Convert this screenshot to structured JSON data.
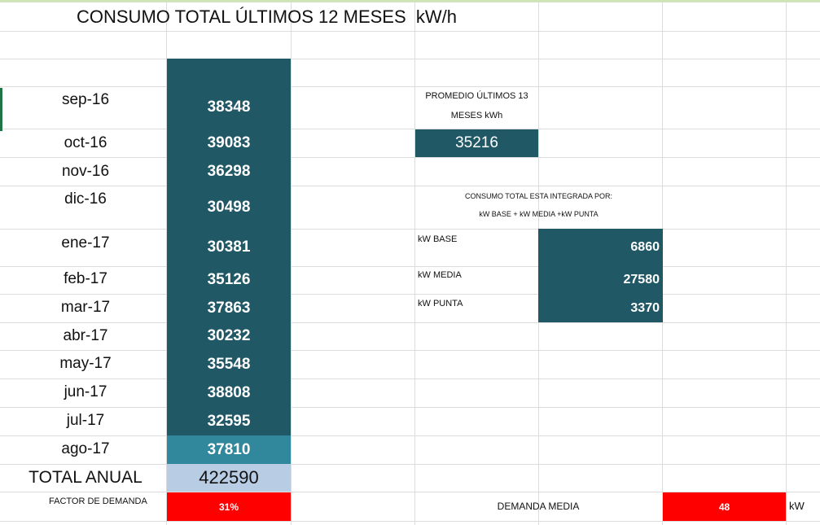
{
  "title": "CONSUMO TOTAL ÚLTIMOS 12 MESES  kW/h",
  "months": [
    {
      "label": "sep-16",
      "value": "38348"
    },
    {
      "label": "oct-16",
      "value": "39083"
    },
    {
      "label": "nov-16",
      "value": "36298"
    },
    {
      "label": "dic-16",
      "value": "30498"
    },
    {
      "label": "ene-17",
      "value": "30381"
    },
    {
      "label": "feb-17",
      "value": "35126"
    },
    {
      "label": "mar-17",
      "value": "37863"
    },
    {
      "label": "abr-17",
      "value": "30232"
    },
    {
      "label": "may-17",
      "value": "35548"
    },
    {
      "label": "jun-17",
      "value": "38808"
    },
    {
      "label": "jul-17",
      "value": "32595"
    },
    {
      "label": "ago-17",
      "value": "37810"
    }
  ],
  "total": {
    "label": "TOTAL ANUAL",
    "value": "422590"
  },
  "factor_demanda": {
    "label": "FACTOR DE DEMANDA",
    "value": "31%"
  },
  "promedio": {
    "label_line1": "PROMEDIO ÚLTIMOS 13",
    "label_line2": "MESES kWh",
    "value": "35216"
  },
  "integrada": {
    "line1": "CONSUMO TOTAL ESTA INTEGRADA POR:",
    "line2": "kW BASE + kW MEDIA +kW PUNTA"
  },
  "kw": [
    {
      "label": "kW BASE",
      "value": "6860"
    },
    {
      "label": "kW MEDIA",
      "value": "27580"
    },
    {
      "label": "kW PUNTA",
      "value": "3370"
    }
  ],
  "demanda_media": {
    "label": "DEMANDA MEDIA",
    "value": "48",
    "unit": "kW"
  },
  "colors": {
    "dark_teal": "#215866",
    "light_teal": "#31879b",
    "total_blue": "#b8cce4",
    "red": "#ff0000"
  }
}
